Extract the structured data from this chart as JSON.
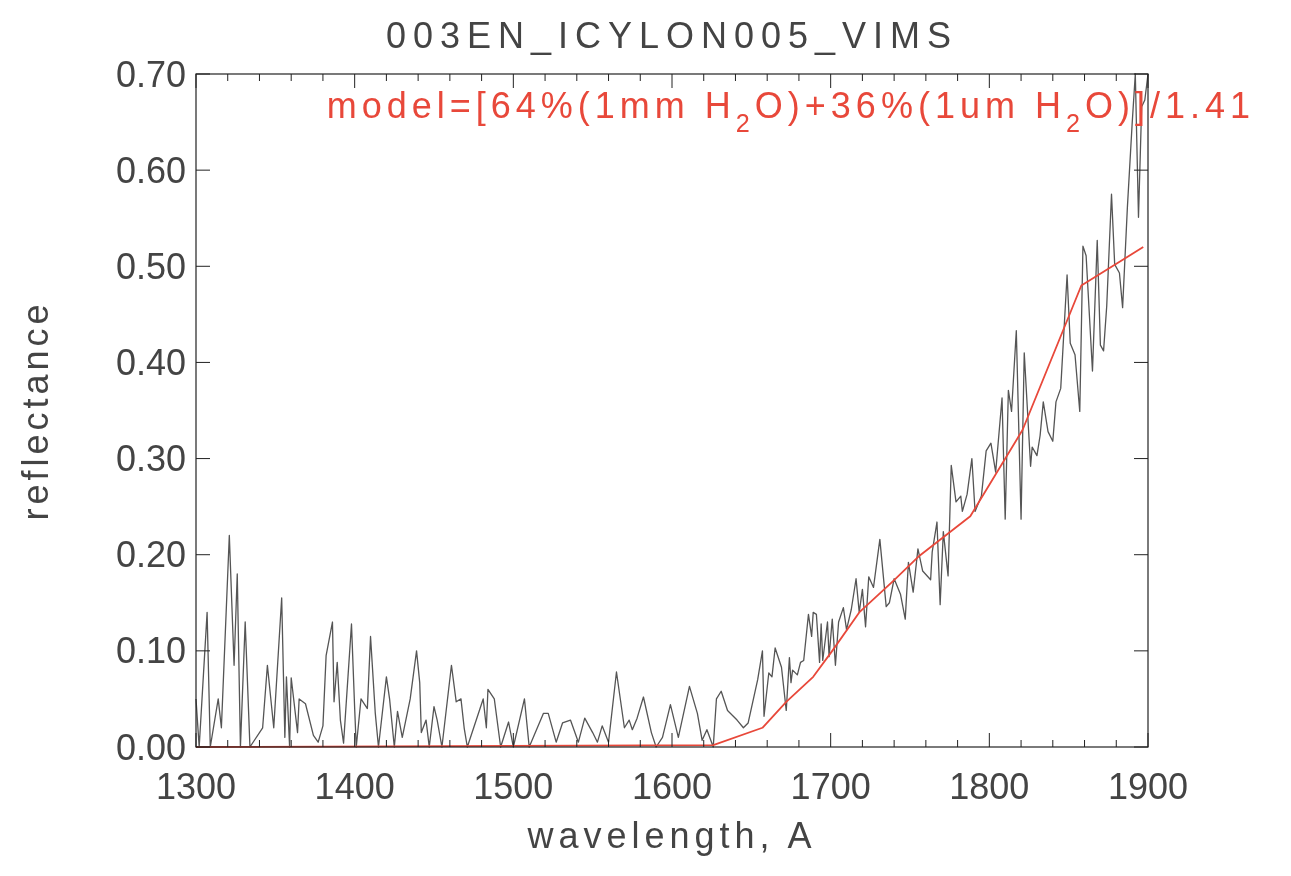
{
  "chart_data": {
    "type": "line",
    "title": "003EN_ICYLON005_VIMS",
    "xlabel": "wavelength, A",
    "ylabel": "reflectance",
    "annotations": [
      "model=[64%(1mm H$_{2}$O)+36%(1um H$_{2}$O)]/1.41"
    ],
    "xlim": [
      1300,
      1900
    ],
    "ylim": [
      0,
      0.7
    ],
    "xticks": [
      1300,
      {
        "value": 1320,
        "label": null
      },
      {
        "value": 1340,
        "label": null
      },
      {
        "value": 1360,
        "label": null
      },
      {
        "value": 1380,
        "label": null
      },
      1400,
      {
        "value": 1420,
        "label": null
      },
      {
        "value": 1440,
        "label": null
      },
      {
        "value": 1460,
        "label": null
      },
      {
        "value": 1480,
        "label": null
      },
      1500,
      {
        "value": 1520,
        "label": null
      },
      {
        "value": 1540,
        "label": null
      },
      {
        "value": 1560,
        "label": null
      },
      {
        "value": 1580,
        "label": null
      },
      1600,
      {
        "value": 1620,
        "label": null
      },
      {
        "value": 1640,
        "label": null
      },
      {
        "value": 1660,
        "label": null
      },
      {
        "value": 1680,
        "label": null
      },
      1700,
      {
        "value": 1720,
        "label": null
      },
      {
        "value": 1740,
        "label": null
      },
      {
        "value": 1760,
        "label": null
      },
      {
        "value": 1780,
        "label": null
      },
      1800,
      {
        "value": 1820,
        "label": null
      },
      {
        "value": 1840,
        "label": null
      },
      {
        "value": 1860,
        "label": null
      },
      {
        "value": 1880,
        "label": null
      },
      1900
    ],
    "yticks": [
      {
        "value": 0,
        "label": "0.00"
      },
      {
        "value": 0.1,
        "label": "0.10"
      },
      {
        "value": 0.2,
        "label": "0.20"
      },
      {
        "value": 0.3,
        "label": "0.30"
      },
      {
        "value": 0.4,
        "label": "0.40"
      },
      {
        "value": 0.5,
        "label": "0.50"
      },
      {
        "value": 0.6,
        "label": "0.60"
      },
      {
        "value": 0.7,
        "label": "0.70"
      }
    ],
    "grid": false,
    "marker": "none",
    "line_style": "solid",
    "series": [
      {
        "color": "#555555",
        "x": [
          1300,
          1302,
          1307,
          1309,
          1314,
          1316,
          1321,
          1324,
          1326,
          1328,
          1331,
          1334,
          1342,
          1345,
          1349,
          1354,
          1356,
          1357,
          1359,
          1360,
          1364,
          1365,
          1369,
          1374,
          1377,
          1380,
          1382,
          1386,
          1387,
          1389,
          1391,
          1393,
          1398,
          1400,
          1401,
          1404,
          1408,
          1410,
          1413,
          1415,
          1420,
          1422,
          1425,
          1427,
          1430,
          1435,
          1439,
          1441,
          1442,
          1445,
          1447,
          1450,
          1452,
          1455,
          1461,
          1464,
          1467,
          1469,
          1471,
          1481,
          1483,
          1484,
          1488,
          1492,
          1497,
          1500,
          1507,
          1510,
          1519,
          1522,
          1527,
          1531,
          1536,
          1541,
          1545,
          1550,
          1553,
          1556,
          1560,
          1565,
          1570,
          1573,
          1575,
          1578,
          1582,
          1587,
          1590,
          1594,
          1599,
          1604,
          1611,
          1616,
          1619,
          1622,
          1626,
          1628,
          1631,
          1635,
          1641,
          1645,
          1648,
          1654,
          1657,
          1658,
          1661,
          1663,
          1665,
          1669,
          1672,
          1674,
          1675,
          1676,
          1679,
          1681,
          1683,
          1686,
          1688,
          1689,
          1691,
          1693,
          1694,
          1695,
          1698,
          1699,
          1701,
          1703,
          1705,
          1708,
          1710,
          1713,
          1716,
          1718,
          1720,
          1722,
          1724,
          1727,
          1731,
          1735,
          1737,
          1740,
          1744,
          1747,
          1749,
          1752,
          1755,
          1758,
          1763,
          1764,
          1767,
          1769,
          1771,
          1774,
          1776,
          1779,
          1782,
          1783,
          1786,
          1789,
          1791,
          1795,
          1798,
          1801,
          1804,
          1808,
          1810,
          1812,
          1814,
          1817,
          1820,
          1822,
          1826,
          1827,
          1830,
          1832,
          1834,
          1837,
          1840,
          1842,
          1845,
          1849,
          1851,
          1854,
          1857,
          1859,
          1861,
          1865,
          1868,
          1870,
          1872,
          1874,
          1877,
          1879,
          1882,
          1884,
          1887,
          1890,
          1892,
          1894,
          1896,
          1898,
          1900
        ],
        "values": [
          0.05,
          0,
          0.14,
          0,
          0.05,
          0.02,
          0.22,
          0.085,
          0.18,
          0,
          0.13,
          0,
          0.02,
          0.085,
          0.02,
          0.155,
          0.01,
          0.073,
          0,
          0.072,
          0.015,
          0.05,
          0.045,
          0.012,
          0.005,
          0.022,
          0.095,
          0.13,
          0.047,
          0.088,
          0.028,
          0.004,
          0.128,
          0.04,
          0,
          0.05,
          0.04,
          0.115,
          0.035,
          0,
          0.073,
          0.05,
          0,
          0.037,
          0.01,
          0.05,
          0.1,
          0.067,
          0.015,
          0.028,
          0,
          0.042,
          0.028,
          0,
          0.085,
          0.047,
          0.05,
          0.02,
          0,
          0.05,
          0.02,
          0.06,
          0.05,
          0,
          0.026,
          0,
          0.05,
          0,
          0.035,
          0.035,
          0.005,
          0.025,
          0.028,
          0.005,
          0.03,
          0.015,
          0.005,
          0.022,
          0.005,
          0.078,
          0.02,
          0.028,
          0.018,
          0.03,
          0.052,
          0.015,
          0,
          0.01,
          0.044,
          0.01,
          0.063,
          0.035,
          0.007,
          0.018,
          0,
          0.05,
          0.058,
          0.038,
          0.028,
          0.02,
          0.025,
          0.07,
          0.1,
          0.032,
          0.077,
          0.073,
          0.103,
          0.083,
          0.038,
          0.093,
          0.067,
          0.08,
          0.075,
          0.088,
          0.09,
          0.138,
          0.115,
          0.14,
          0.138,
          0.088,
          0.128,
          0.09,
          0.13,
          0.094,
          0.133,
          0.085,
          0.13,
          0.145,
          0.122,
          0.143,
          0.175,
          0.14,
          0.164,
          0.125,
          0.177,
          0.166,
          0.216,
          0.146,
          0.15,
          0.175,
          0.159,
          0.133,
          0.192,
          0.161,
          0.206,
          0.183,
          0.174,
          0.203,
          0.234,
          0.148,
          0.224,
          0.178,
          0.293,
          0.255,
          0.261,
          0.245,
          0.263,
          0.3,
          0.245,
          0.261,
          0.308,
          0.316,
          0.286,
          0.363,
          0.237,
          0.371,
          0.349,
          0.433,
          0.237,
          0.41,
          0.292,
          0.312,
          0.303,
          0.324,
          0.359,
          0.328,
          0.318,
          0.359,
          0.373,
          0.491,
          0.42,
          0.408,
          0.349,
          0.521,
          0.511,
          0.391,
          0.527,
          0.418,
          0.412,
          0.459,
          0.575,
          0.502,
          0.493,
          0.457,
          0.561,
          0.648,
          0.7,
          0.551,
          0.666,
          0.673,
          0.7
        ]
      },
      {
        "color": "#e8483a",
        "x": [
          1300,
          1626,
          1657,
          1672,
          1689,
          1701,
          1718,
          1739,
          1756,
          1788,
          1821,
          1858,
          1897
        ],
        "values": [
          0,
          0.002,
          0.02,
          0.047,
          0.073,
          0.1,
          0.14,
          0.172,
          0.199,
          0.24,
          0.33,
          0.48,
          0.52
        ]
      }
    ]
  }
}
